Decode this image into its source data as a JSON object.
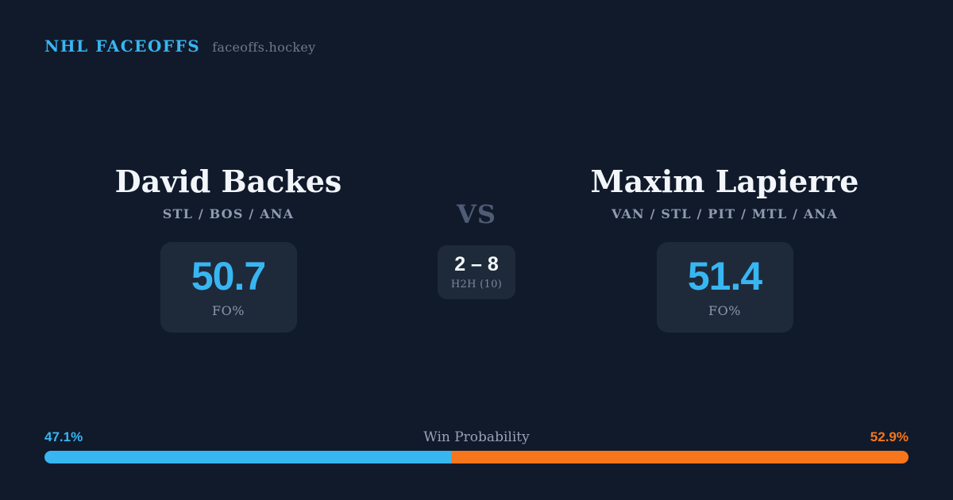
{
  "header": {
    "brand": "NHL FACEOFFS",
    "site": "faceoffs.hockey"
  },
  "matchup": {
    "left": {
      "name": "David Backes",
      "teams": "STL / BOS / ANA",
      "fo_pct": "50.7",
      "fo_label": "FO%"
    },
    "right": {
      "name": "Maxim Lapierre",
      "teams": "VAN / STL / PIT / MTL / ANA",
      "fo_pct": "51.4",
      "fo_label": "FO%"
    },
    "vs_label": "VS",
    "h2h": {
      "score": "2 – 8",
      "label": "H2H (10)"
    }
  },
  "win_probability": {
    "label": "Win Probability",
    "left_pct": 47.1,
    "right_pct": 52.9,
    "left_text": "47.1%",
    "right_text": "52.9%"
  },
  "colors": {
    "background": "#111a2b",
    "card": "#1e2a3a",
    "accent-blue": "#38b6f2",
    "accent-orange": "#f7761b",
    "text-white": "#f2f6fa",
    "text-gray": "#8e9cb2",
    "text-muted": "#6d7889",
    "vs-color": "#4e5c75"
  }
}
